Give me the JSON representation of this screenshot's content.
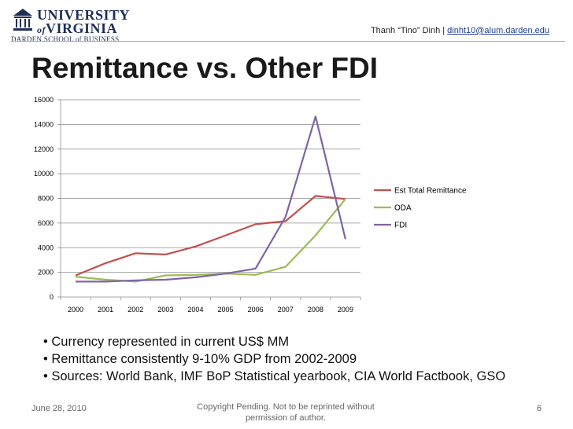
{
  "header": {
    "logo_line1": "UNIVERSITY",
    "logo_line2": "VIRGINIA",
    "logo_of": "of",
    "logo_school": "DARDEN SCHOOL of BUSINESS",
    "author_name": "Thanh “Tino” Dinh | ",
    "author_email": "dinht10@alum.darden.edu",
    "logo_color": "#1e2f55"
  },
  "title": "Remittance vs. Other FDI",
  "chart_data": {
    "type": "line",
    "x": [
      "2000",
      "2001",
      "2002",
      "2003",
      "2004",
      "2005",
      "2006",
      "2007",
      "2008",
      "2009"
    ],
    "ylim": [
      0,
      16000
    ],
    "yticks": [
      "16000",
      "14000",
      "12000",
      "10000",
      "8000",
      "6000",
      "4000",
      "2000",
      "0"
    ],
    "grid": true,
    "legend": "right",
    "series": [
      {
        "name": "Est Total Remittance",
        "color": "#c0504d",
        "values": [
          1750,
          2750,
          3550,
          3450,
          4100,
          5000,
          5900,
          6150,
          8200,
          7950
        ]
      },
      {
        "name": "ODA",
        "color": "#9bbb59",
        "values": [
          1650,
          1400,
          1250,
          1750,
          1800,
          1900,
          1800,
          2450,
          5000,
          7950
        ]
      },
      {
        "name": "FDI",
        "color": "#8064a2",
        "values": [
          1250,
          1250,
          1350,
          1400,
          1600,
          1900,
          2300,
          6500,
          14650,
          4700
        ]
      }
    ]
  },
  "bullets": [
    "• Currency represented in current US$ MM",
    "• Remittance  consistently  9-10% GDP from 2002-2009",
    "• Sources: World Bank, IMF BoP Statistical yearbook, CIA World Factbook, GSO"
  ],
  "footer": {
    "date": "June 28, 2010",
    "copyright": "Copyright Pending. Not to be reprinted without permission of author.",
    "page": "6"
  }
}
